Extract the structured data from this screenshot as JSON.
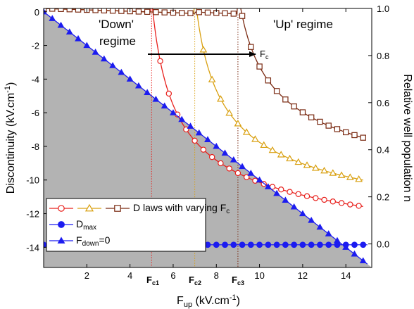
{
  "chart_data": {
    "type": "line",
    "xlabel": "F",
    "xlabel_sub": "up",
    "xlabel_unit": " (kV.cm",
    "xlabel_unit_sup": "-1",
    "xlabel_unit_end": ")",
    "ylabel_left": "Discontinuity (kV.cm",
    "ylabel_left_sup": "-1",
    "ylabel_left_end": ")",
    "ylabel_right": "Relative well population n",
    "xlim": [
      0,
      15.2
    ],
    "ylim_left": [
      -15.2,
      0.2
    ],
    "ylim_right": [
      -0.1,
      1.0
    ],
    "x_ticks": [
      2,
      4,
      6,
      8,
      10,
      12,
      14
    ],
    "y_left_ticks": [
      0,
      -2,
      -4,
      -6,
      -8,
      -10,
      -12,
      -14
    ],
    "y_right_ticks": [
      1.0,
      0.8,
      0.6,
      0.4,
      0.2,
      0.0
    ],
    "annotations": {
      "down_regime_1": "'Down'",
      "down_regime_2": "regime",
      "up_regime": "'Up' regime",
      "arrow_label": "F",
      "arrow_label_sub": "c",
      "fc1": "F",
      "fc1_sub": "c1",
      "fc2": "F",
      "fc2_sub": "c2",
      "fc3": "F",
      "fc3_sub": "c3"
    },
    "critical_fields": [
      5,
      7,
      9
    ],
    "series": [
      {
        "color": "#e8201c",
        "marker": "circle-open",
        "Fc": 5
      },
      {
        "color": "#d9a010",
        "marker": "triangle-open",
        "Fc": 7
      },
      {
        "color": "#7a2a12",
        "marker": "square-open",
        "Fc": 9
      },
      {
        "color": "#1c1cf0",
        "marker": "circle-filled",
        "x": [
          0,
          15
        ],
        "y": [
          -13.85,
          -13.85
        ]
      },
      {
        "color": "#1c1cf0",
        "marker": "triangle-filled",
        "x": [
          0,
          15
        ],
        "y": [
          0,
          -15
        ]
      }
    ],
    "legend": {
      "row1": "D laws with varying F",
      "row1_sub": "c",
      "row2": "D",
      "row2_sub": "max",
      "row3": "F",
      "row3_sub": "down",
      "row3_end": "=0"
    },
    "colors": {
      "shade": "#b3b3b3",
      "red": "#e8201c",
      "orange": "#d9a010",
      "brown": "#7a2a12",
      "blue": "#1c1cf0"
    }
  }
}
